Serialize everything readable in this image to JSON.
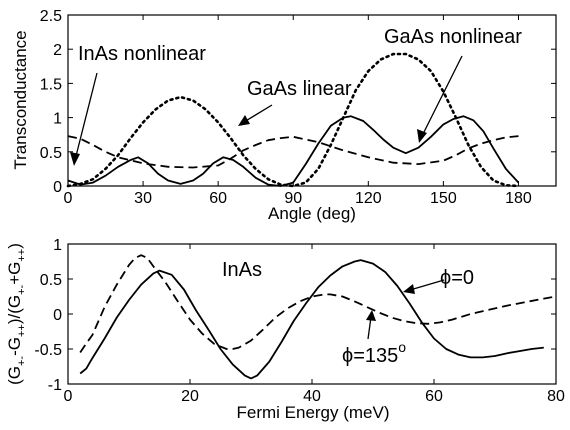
{
  "chart_data": [
    {
      "type": "line",
      "xlabel": "Angle (deg)",
      "ylabel": "Transconductance",
      "xlim": [
        0,
        195
      ],
      "ylim": [
        0,
        2.5
      ],
      "x_ticks": [
        0,
        30,
        60,
        90,
        120,
        150,
        180
      ],
      "y_ticks": [
        0,
        0.5,
        1,
        1.5,
        2,
        2.5
      ],
      "x_tick_labels": [
        "0",
        "30",
        "60",
        "90",
        "120",
        "150",
        "180"
      ],
      "y_tick_labels": [
        "0",
        "0.5",
        "1",
        "1.5",
        "2",
        "2.5"
      ],
      "grid": false,
      "series": [
        {
          "style": "solid",
          "x": [
            0,
            5,
            10,
            15,
            20,
            25,
            28,
            32,
            36,
            40,
            45,
            50,
            54,
            58,
            62,
            66,
            70,
            75,
            80,
            85,
            90,
            95,
            100,
            105,
            110,
            113,
            118,
            122,
            126,
            130,
            135,
            140,
            145,
            150,
            154,
            158,
            162,
            166,
            170,
            175,
            180
          ],
          "y": [
            0.08,
            0.02,
            0.05,
            0.15,
            0.28,
            0.38,
            0.42,
            0.33,
            0.18,
            0.08,
            0.03,
            0.08,
            0.18,
            0.33,
            0.42,
            0.38,
            0.28,
            0.12,
            0.02,
            0.0,
            0.05,
            0.32,
            0.62,
            0.88,
            1.0,
            1.02,
            0.95,
            0.82,
            0.68,
            0.56,
            0.48,
            0.56,
            0.72,
            0.9,
            0.98,
            1.02,
            0.96,
            0.8,
            0.55,
            0.25,
            0.05
          ]
        },
        {
          "style": "dashed",
          "x": [
            0,
            5,
            10,
            15,
            20,
            30,
            40,
            50,
            60,
            65,
            70,
            75,
            80,
            85,
            90,
            100,
            110,
            120,
            130,
            140,
            150,
            155,
            160,
            165,
            170,
            175,
            180
          ],
          "y": [
            0.73,
            0.69,
            0.6,
            0.5,
            0.42,
            0.33,
            0.28,
            0.27,
            0.3,
            0.4,
            0.52,
            0.6,
            0.67,
            0.7,
            0.72,
            0.64,
            0.52,
            0.42,
            0.34,
            0.32,
            0.37,
            0.45,
            0.55,
            0.62,
            0.67,
            0.71,
            0.73
          ]
        },
        {
          "style": "dotted",
          "x": [
            0,
            5,
            10,
            15,
            20,
            25,
            30,
            35,
            40,
            45,
            50,
            55,
            60,
            65,
            70,
            75,
            80,
            85,
            90,
            95,
            100,
            105,
            110,
            115,
            120,
            125,
            130,
            135,
            140,
            145,
            150,
            155,
            160,
            165,
            170,
            175,
            180
          ],
          "y": [
            0.0,
            0.03,
            0.1,
            0.25,
            0.45,
            0.7,
            0.93,
            1.12,
            1.25,
            1.3,
            1.25,
            1.12,
            0.93,
            0.7,
            0.45,
            0.25,
            0.1,
            0.02,
            0.0,
            0.05,
            0.25,
            0.6,
            1.0,
            1.4,
            1.68,
            1.85,
            1.93,
            1.93,
            1.85,
            1.68,
            1.38,
            1.0,
            0.6,
            0.28,
            0.08,
            0.01,
            0.0
          ]
        }
      ],
      "annotations": [
        {
          "text": "InAs nonlinear",
          "x": 6,
          "y": 2.12,
          "arrow_to": [
            9,
            0.32
          ]
        },
        {
          "text": "GaAs linear",
          "x": 72,
          "y": 1.62,
          "arrow_to": [
            66,
            1.18
          ]
        },
        {
          "text": "GaAs nonlinear",
          "x": 121,
          "y": 2.12,
          "arrow_to": [
            139,
            0.64
          ]
        }
      ]
    },
    {
      "type": "line",
      "xlabel": "Fermi Energy (meV)",
      "ylabel_base": "(G",
      "ylim": [
        -1,
        1
      ],
      "xlim": [
        0,
        80
      ],
      "x_ticks": [
        0,
        20,
        40,
        60,
        80
      ],
      "y_ticks": [
        -1,
        -0.5,
        0,
        0.5,
        1
      ],
      "x_tick_labels": [
        "0",
        "20",
        "40",
        "60",
        "80"
      ],
      "y_tick_labels": [
        "-1",
        "-0.5",
        "0",
        "0.5",
        "1"
      ],
      "grid": false,
      "series": [
        {
          "style": "solid",
          "label_prefix": "ϕ",
          "label_value": "=0",
          "x": [
            2,
            3,
            4,
            6,
            8,
            10,
            12,
            14,
            15,
            17,
            19,
            21,
            23,
            25,
            27,
            29,
            30,
            31,
            33,
            35,
            37,
            39,
            41,
            43,
            45,
            47,
            48,
            50,
            52,
            54,
            56,
            58,
            60,
            62,
            64,
            66,
            68,
            70,
            72,
            74,
            76,
            78
          ],
          "y": [
            -0.85,
            -0.78,
            -0.63,
            -0.35,
            -0.05,
            0.2,
            0.42,
            0.58,
            0.62,
            0.56,
            0.35,
            0.05,
            -0.22,
            -0.5,
            -0.72,
            -0.88,
            -0.92,
            -0.88,
            -0.68,
            -0.4,
            -0.1,
            0.15,
            0.38,
            0.55,
            0.68,
            0.75,
            0.77,
            0.72,
            0.6,
            0.4,
            0.15,
            -0.12,
            -0.35,
            -0.5,
            -0.58,
            -0.62,
            -0.62,
            -0.6,
            -0.56,
            -0.53,
            -0.5,
            -0.48
          ]
        },
        {
          "style": "dashed",
          "label_prefix": "ϕ",
          "label_value": "=135",
          "label_sup": "o",
          "x": [
            2,
            3,
            4,
            5,
            6,
            8,
            10,
            11,
            12,
            13,
            14,
            16,
            18,
            20,
            22,
            24,
            26,
            27,
            28,
            30,
            32,
            34,
            36,
            38,
            40,
            42,
            43,
            45,
            47,
            49,
            51,
            53,
            55,
            57,
            59,
            61,
            63,
            66,
            69,
            72,
            75,
            78,
            80
          ],
          "y": [
            -0.55,
            -0.42,
            -0.3,
            -0.1,
            0.1,
            0.42,
            0.7,
            0.8,
            0.84,
            0.8,
            0.68,
            0.45,
            0.18,
            -0.08,
            -0.28,
            -0.43,
            -0.5,
            -0.5,
            -0.48,
            -0.38,
            -0.22,
            -0.05,
            0.08,
            0.18,
            0.25,
            0.28,
            0.28,
            0.25,
            0.18,
            0.1,
            0.02,
            -0.05,
            -0.1,
            -0.13,
            -0.14,
            -0.12,
            -0.08,
            0.0,
            0.06,
            0.12,
            0.17,
            0.22,
            0.25
          ]
        }
      ],
      "annotations": [
        {
          "text": "InAs",
          "x": 24,
          "y": 0.6
        }
      ]
    }
  ],
  "labels": {
    "inas_nonlinear": "InAs nonlinear",
    "gaas_linear": "GaAs linear",
    "gaas_nonlinear": "GaAs nonlinear",
    "inas": "InAs",
    "phi0_prefix": "ϕ",
    "phi0_value": "=0",
    "phi135_prefix": "ϕ",
    "phi135_value": "=135",
    "phi135_sup": "o",
    "bottom_ylabel_parts": [
      "(G",
      "+-",
      "-G",
      "++",
      ")/(G",
      "+-",
      "+G",
      "++",
      ")"
    ]
  }
}
